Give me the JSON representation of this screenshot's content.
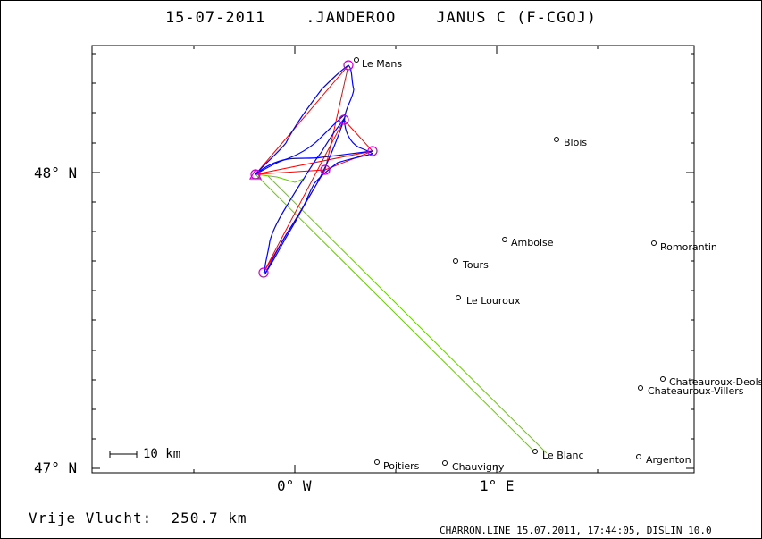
{
  "title": "15-07-2011    .JANDEROO    JANUS C (F-CGOJ)",
  "distance_label": "Vrije Vlucht:  250.7 km",
  "footer": "CHARRON.LINE 15.07.2011, 17:44:05, DISLIN 10.0",
  "scale_label": "10 km",
  "axes": {
    "lat_labels": [
      "48° N",
      "47° N"
    ],
    "lon_labels": [
      "0° W",
      "1° E"
    ]
  },
  "cities": [
    {
      "name": "Le Mans"
    },
    {
      "name": "Blois"
    },
    {
      "name": "Amboise"
    },
    {
      "name": "Romorantin"
    },
    {
      "name": "Tours"
    },
    {
      "name": "Le Louroux"
    },
    {
      "name": "Chateauroux-Deols"
    },
    {
      "name": "Chateauroux-Villers"
    },
    {
      "name": "Le Blanc"
    },
    {
      "name": "Argenton"
    },
    {
      "name": "Poitiers"
    },
    {
      "name": "Chauvigny"
    }
  ],
  "colors": {
    "track": "#0000ff",
    "task": "#ff0000",
    "start_finish": "#66cc00",
    "turnpoint": "#cc00cc",
    "frame": "#000000"
  }
}
